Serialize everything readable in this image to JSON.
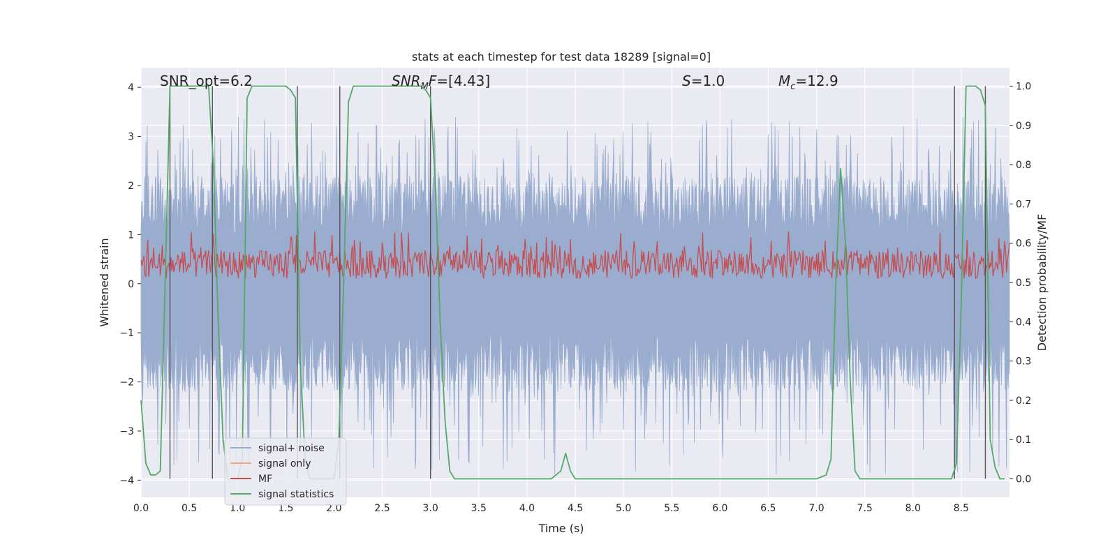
{
  "chart_data": {
    "type": "line",
    "title": "stats at each timestep for test data 18289 [signal=0]",
    "xlabel": "Time (s)",
    "ylabel_left": "Whitened strain",
    "ylabel_right": "Detection probability/MF",
    "xlim": [
      0.0,
      9.0
    ],
    "ylim_left": [
      -4.35,
      4.4
    ],
    "ylim_right": [
      -0.047,
      1.047
    ],
    "x_ticks": [
      "0.0",
      "0.5",
      "1.0",
      "1.5",
      "2.0",
      "2.5",
      "3.0",
      "3.5",
      "4.0",
      "4.5",
      "5.0",
      "5.5",
      "6.0",
      "6.5",
      "7.0",
      "7.5",
      "8.0",
      "8.5"
    ],
    "x_tick_values": [
      0,
      0.5,
      1,
      1.5,
      2,
      2.5,
      3,
      3.5,
      4,
      4.5,
      5,
      5.5,
      6,
      6.5,
      7,
      7.5,
      8,
      8.5
    ],
    "y_left_ticks": [
      "−4",
      "−3",
      "−2",
      "−1",
      "0",
      "1",
      "2",
      "3",
      "4"
    ],
    "y_left_tick_values": [
      -4,
      -3,
      -2,
      -1,
      0,
      1,
      2,
      3,
      4
    ],
    "y_right_ticks": [
      "0.0",
      "0.1",
      "0.2",
      "0.3",
      "0.4",
      "0.5",
      "0.6",
      "0.7",
      "0.8",
      "0.9",
      "1.0"
    ],
    "y_right_tick_values": [
      0,
      0.1,
      0.2,
      0.3,
      0.4,
      0.5,
      0.6,
      0.7,
      0.8,
      0.9,
      1.0
    ],
    "annotations": [
      {
        "text": "SNR_opt=6.2",
        "x": 0.2
      },
      {
        "text": "SNR_MF=[4.43]",
        "x": 2.6
      },
      {
        "text": "S=1.0",
        "x": 5.6
      },
      {
        "text": "M_c=12.9",
        "x": 6.6
      }
    ],
    "noise": {
      "name": "signal+ noise",
      "color": "#9aadcf",
      "pos_envelope": 2.2,
      "neg_envelope": 2.2,
      "spike_max": 3.4,
      "spike_min": -3.9
    },
    "signal_only": {
      "name": "signal only",
      "color": "#f0a48a",
      "values": "zero"
    },
    "mf": {
      "name": "MF",
      "color": "#c44e52",
      "baseline": 0.51,
      "range": [
        0.51,
        0.63
      ]
    },
    "signal_statistics": {
      "name": "signal statistics",
      "color": "#55a868",
      "x": [
        0.0,
        0.05,
        0.1,
        0.15,
        0.2,
        0.25,
        0.3,
        0.35,
        0.4,
        0.45,
        0.5,
        0.55,
        0.6,
        0.65,
        0.7,
        0.75,
        0.8,
        0.85,
        0.9,
        0.95,
        1.0,
        1.05,
        1.1,
        1.15,
        1.2,
        1.3,
        1.4,
        1.5,
        1.55,
        1.6,
        1.65,
        1.7,
        1.75,
        1.8,
        1.9,
        2.0,
        2.05,
        2.1,
        2.15,
        2.2,
        2.3,
        2.5,
        2.7,
        2.9,
        2.95,
        3.0,
        3.05,
        3.1,
        3.15,
        3.2,
        3.25,
        3.3,
        3.5,
        4.0,
        4.25,
        4.3,
        4.35,
        4.4,
        4.45,
        4.5,
        5.0,
        6.0,
        7.0,
        7.1,
        7.15,
        7.2,
        7.25,
        7.3,
        7.35,
        7.4,
        7.45,
        7.6,
        8.0,
        8.4,
        8.45,
        8.5,
        8.55,
        8.6,
        8.65,
        8.7,
        8.75,
        8.8,
        8.85,
        8.9,
        8.95
      ],
      "y": [
        0.2,
        0.04,
        0.01,
        0.01,
        0.02,
        0.5,
        1.0,
        1.0,
        1.0,
        1.0,
        1.0,
        1.0,
        1.0,
        1.0,
        1.0,
        0.8,
        0.4,
        0.1,
        0.0,
        0.0,
        0.0,
        0.05,
        0.97,
        1.0,
        1.0,
        1.0,
        1.0,
        1.0,
        0.99,
        0.97,
        0.3,
        0.05,
        0.0,
        0.0,
        0.0,
        0.0,
        0.1,
        0.5,
        0.96,
        1.0,
        1.0,
        1.0,
        1.0,
        1.0,
        0.99,
        0.97,
        0.75,
        0.4,
        0.15,
        0.02,
        0.0,
        0.0,
        0.0,
        0.0,
        0.0,
        0.01,
        0.02,
        0.065,
        0.02,
        0.0,
        0.0,
        0.0,
        0.0,
        0.01,
        0.05,
        0.5,
        0.79,
        0.6,
        0.25,
        0.02,
        0.0,
        0.0,
        0.0,
        0.0,
        0.04,
        0.45,
        1.0,
        1.0,
        1.0,
        0.99,
        0.95,
        0.1,
        0.03,
        0.0,
        0.0
      ]
    },
    "vertical_lines": [
      0.3,
      0.74,
      1.62,
      2.06,
      3.0,
      8.43,
      8.75
    ],
    "legend": {
      "placement": "bottom-left",
      "entries": [
        {
          "label": "signal+ noise",
          "color": "#9aadcf"
        },
        {
          "label": "signal only",
          "color": "#f0a48a"
        },
        {
          "label": "MF",
          "color": "#c44e52"
        },
        {
          "label": "signal statistics",
          "color": "#55a868"
        }
      ]
    }
  }
}
